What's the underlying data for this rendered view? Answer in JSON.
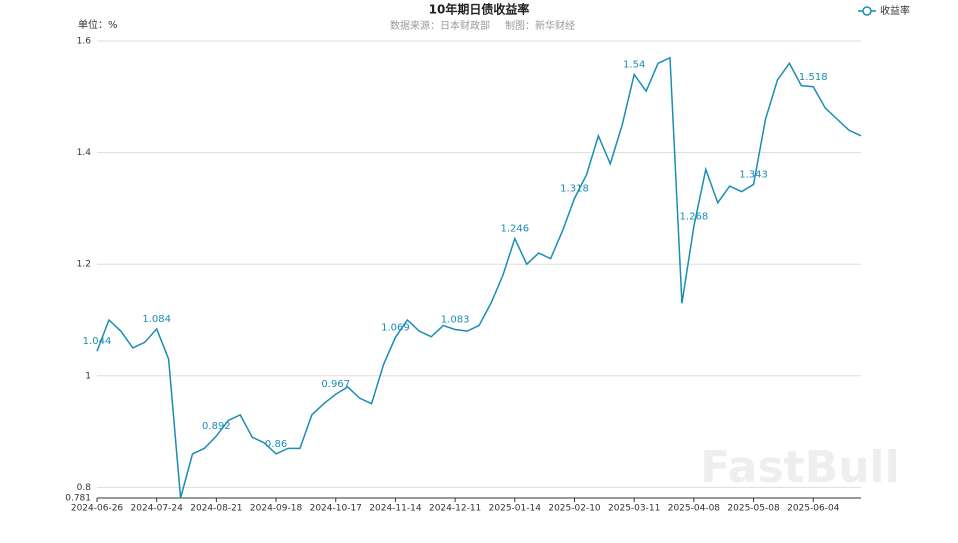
{
  "chart_data": {
    "type": "line",
    "title": "10年期日债收益率",
    "subtitle": "数据来源：日本财政部",
    "credit": "制图：新华财经",
    "y_unit": "单位：%",
    "watermark": "FastBull",
    "categories": [
      "2024-06-26",
      null,
      null,
      null,
      null,
      "2024-07-24",
      null,
      null,
      null,
      null,
      "2024-08-21",
      null,
      null,
      null,
      null,
      "2024-09-18",
      null,
      null,
      null,
      null,
      "2024-10-17",
      null,
      null,
      null,
      null,
      "2024-11-14",
      null,
      null,
      null,
      null,
      "2024-12-11",
      null,
      null,
      null,
      null,
      "2025-01-14",
      null,
      null,
      null,
      null,
      "2025-02-10",
      null,
      null,
      null,
      null,
      "2025-03-11",
      null,
      null,
      null,
      null,
      "2025-04-08",
      null,
      null,
      null,
      null,
      "2025-05-08",
      null,
      null,
      null,
      null,
      "2025-06-04",
      null,
      null,
      null,
      null
    ],
    "series": [
      {
        "name": "收益率",
        "color": "#1a8db5",
        "values": [
          1.044,
          1.1,
          1.08,
          1.05,
          1.06,
          1.084,
          1.03,
          0.781,
          0.86,
          0.87,
          0.892,
          0.92,
          0.93,
          0.89,
          0.88,
          0.86,
          0.87,
          0.87,
          0.93,
          0.95,
          0.967,
          0.98,
          0.96,
          0.95,
          1.02,
          1.069,
          1.1,
          1.08,
          1.07,
          1.09,
          1.083,
          1.08,
          1.09,
          1.13,
          1.18,
          1.246,
          1.2,
          1.22,
          1.21,
          1.26,
          1.318,
          1.36,
          1.43,
          1.38,
          1.45,
          1.54,
          1.51,
          1.56,
          1.57,
          1.13,
          1.268,
          1.37,
          1.31,
          1.34,
          1.33,
          1.343,
          1.46,
          1.53,
          1.56,
          1.52,
          1.518,
          1.48,
          1.46,
          1.44,
          1.43
        ],
        "value_labels": [
          "1.044",
          null,
          null,
          null,
          null,
          "1.084",
          null,
          null,
          null,
          null,
          "0.892",
          null,
          null,
          null,
          null,
          "0.86",
          null,
          null,
          null,
          null,
          "0.967",
          null,
          null,
          null,
          null,
          "1.069",
          null,
          null,
          null,
          null,
          "1.083",
          null,
          null,
          null,
          null,
          "1.246",
          null,
          null,
          null,
          null,
          "1.318",
          null,
          null,
          null,
          null,
          "1.54",
          null,
          null,
          null,
          null,
          "1.268",
          null,
          null,
          null,
          null,
          "1.343",
          null,
          null,
          null,
          null,
          "1.518",
          null,
          null,
          null,
          null
        ]
      }
    ],
    "ylim": [
      0.781,
      1.6
    ],
    "yticks": [
      0.781,
      0.8,
      1,
      1.2,
      1.4,
      1.6
    ],
    "grid": true
  }
}
